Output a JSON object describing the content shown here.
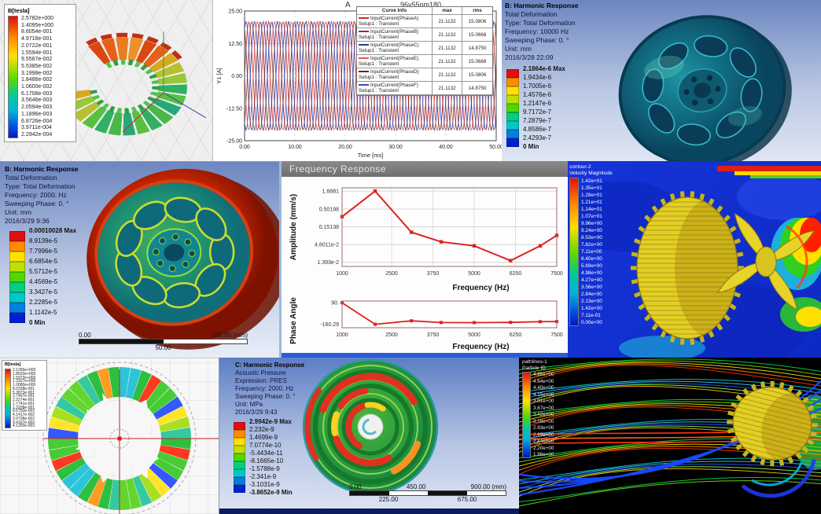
{
  "colors": {
    "ansys9": [
      "#e01010",
      "#ff8c00",
      "#ffe000",
      "#bfe000",
      "#50d800",
      "#00d080",
      "#00c8c8",
      "#0080e0",
      "#0020d0"
    ],
    "accent_red": "#e02020",
    "ansys_bg_top": "#6c86c0"
  },
  "coil": {
    "legend_title": "B[tesla]",
    "legend_values": [
      "2.5782e+000",
      "1.4095e+000",
      "8.6054e-001",
      "4.9716e-001",
      "2.0722e-001",
      "1.5594e-001",
      "9.5567e-002",
      "5.5385e-002",
      "3.1998e-002",
      "1.8486e-002",
      "1.0600e-002",
      "6.1708e-003",
      "3.5646e-003",
      "2.0594e-003",
      "1.1896e-003",
      "6.8726e-004",
      "3.9711e-004",
      "2.2942e-004"
    ]
  },
  "harmonic_10000": {
    "header": [
      "B: Harmonic Response",
      "Total Deformation",
      "Type: Total Deformation",
      "Frequency: 10000 Hz",
      "Sweeping Phase: 0. °",
      "Unit: mm",
      "2016/3/28 22:09"
    ],
    "legend": [
      "2.1864e-6 Max",
      "1.9434e-6",
      "1.7005e-6",
      "1.4576e-6",
      "1.2147e-6",
      "9.7172e-7",
      "7.2879e-7",
      "4.8586e-7",
      "2.4293e-7",
      "0 Min"
    ]
  },
  "harmonic_2000": {
    "header": [
      "B: Harmonic Response",
      "Total Deformation",
      "Type: Total Deformation",
      "Frequency: 2000. Hz",
      "Sweeping Phase: 0. °",
      "Unit: mm",
      "2016/3/29 9:36"
    ],
    "legend": [
      "0.00010028 Max",
      "8.9139e-5",
      "7.7996e-5",
      "6.6854e-5",
      "5.5712e-5",
      "4.4569e-5",
      "3.3427e-5",
      "2.2285e-5",
      "1.1142e-5",
      "0 Min"
    ],
    "ruler": {
      "top_left": "0.00",
      "top_right": "100.00 (mm)",
      "bottom_center": "50.00"
    }
  },
  "freq_response": {
    "window_title": "Frequency Response"
  },
  "cfd": {
    "legend_title_1": "contour-2",
    "legend_title_2": "Velocity Magnitude",
    "legend_values": [
      "1.42e+01",
      "1.35e+01",
      "1.28e+01",
      "1.21e+01",
      "1.14e+01",
      "1.07e+01",
      "9.96e+00",
      "9.24e+00",
      "8.53e+00",
      "7.82e+00",
      "7.11e+00",
      "6.40e+00",
      "5.69e+00",
      "4.98e+00",
      "4.27e+00",
      "3.56e+00",
      "2.84e+00",
      "2.13e+00",
      "1.42e+00",
      "7.11e-01",
      "0.00e+00"
    ]
  },
  "rotor": {
    "legend_title": "B[tesla]",
    "legend_values": [
      "2.1266e+000",
      "1.8620e+000",
      "1.5973e+000",
      "1.3327e+000",
      "1.0680e+000",
      "8.0338e-001",
      "5.3873e-001",
      "2.7407e-001",
      "2.2274e-001",
      "1.7741e-001",
      "1.3208e-001",
      "8.6750e-002",
      "4.1417e-002",
      "2.0708e-002",
      "9.4167e-003",
      "4.1250e-003"
    ]
  },
  "acoustic": {
    "header": [
      "C: Harmonic Response",
      "Acoustic Pressure",
      "Expression: PRES",
      "Frequency: 2000. Hz",
      "Sweeping Phase: 0. °",
      "Unit: MPa",
      "2016/3/29 9:43"
    ],
    "legend": [
      "2.9942e-9 Max",
      "2.232e-9",
      "1.4699e-9",
      "7.0774e-10",
      "-5.4434e-11",
      "-8.1665e-10",
      "-1.5788e-9",
      "-2.341e-9",
      "-3.1031e-9",
      "-3.8652e-9 Min"
    ],
    "ruler": {
      "top_left": "0.00",
      "top_mid": "450.00",
      "top_right": "900.00 (mm)",
      "bottom_left": "225.00",
      "bottom_right": "675.00"
    }
  },
  "pathlines": {
    "legend_title_1": "pathlines-1",
    "legend_title_2": "Particle ID",
    "legend_values": [
      "4.86e+00",
      "4.64e+00",
      "4.40e+00",
      "4.15e+00",
      "3.91e+00",
      "3.67e+00",
      "3.42e+00",
      "3.18e+00",
      "2.93e+00",
      "2.69e+00",
      "2.44e+00",
      "2.20e+00",
      "1.96e+00"
    ]
  },
  "chart_data": [
    {
      "id": "input-currents",
      "type": "line",
      "title": "A",
      "corner_label": "96v55nm180",
      "xlabel": "Time [ms]",
      "ylabel": "Y1 [A]",
      "xlim": [
        0,
        50
      ],
      "ylim": [
        -25,
        25
      ],
      "xticks": [
        "0.00",
        "10.00",
        "20.00",
        "30.00",
        "40.00",
        "50.00"
      ],
      "xtick_values": [
        0,
        10,
        20,
        30,
        40,
        50
      ],
      "yticks": [
        "25.00",
        "12.50",
        "0.00",
        "-12.50",
        "-25.00"
      ],
      "ytick_values": [
        25,
        12.5,
        0,
        -12.5,
        -25
      ],
      "amplitude": 21.1132,
      "period_ms": 3.4,
      "grid": true,
      "legend_columns": [
        "Curve Info",
        "max",
        "rms"
      ],
      "series": [
        {
          "name": "InputCurrent(PhaseA)",
          "setup": "Setup1 : Transient",
          "max": "21.1132",
          "rms": "15.0806",
          "color": "#d02828",
          "phase_deg": 0
        },
        {
          "name": "InputCurrent(PhaseB)",
          "setup": "Setup1 : Transient",
          "max": "21.1132",
          "rms": "15.0668",
          "color": "#8a3232",
          "phase_deg": -60
        },
        {
          "name": "InputCurrent(PhaseC)",
          "setup": "Setup1 : Transient",
          "max": "21.1132",
          "rms": "14.8750",
          "color": "#2838a0",
          "phase_deg": -120
        },
        {
          "name": "InputCurrent(PhaseE)",
          "setup": "Setup1 : Transient",
          "max": "21.1132",
          "rms": "15.0668",
          "color": "#e05858",
          "phase_deg": -180
        },
        {
          "name": "InputCurrent(PhaseD)",
          "setup": "Setup1 : Transient",
          "max": "21.1132",
          "rms": "15.0806",
          "color": "#6a2424",
          "phase_deg": -240
        },
        {
          "name": "InputCurrent(PhaseF)",
          "setup": "Setup1 : Transient",
          "max": "21.1132",
          "rms": "14.8750",
          "color": "#3a4ac0",
          "phase_deg": -300
        }
      ]
    },
    {
      "id": "freq-amplitude",
      "type": "line",
      "yscale": "log",
      "ylabel": "Amplitude (mm/s)",
      "xlabel": "Frequency (Hz)",
      "yticks": [
        "1.6881",
        "0.50198",
        "0.15138",
        "4.6011e-2",
        "1.393e-2"
      ],
      "ytick_values": [
        1.6881,
        0.50198,
        0.15138,
        0.046011,
        0.01393
      ],
      "xticks": [
        "1000",
        "2500",
        "3750",
        "5000",
        "6250",
        "7500"
      ],
      "xtick_values": [
        1000,
        2500,
        3750,
        5000,
        6250,
        7500
      ],
      "xlim": [
        1000,
        7500
      ],
      "x": [
        1000,
        2000,
        3100,
        4000,
        5000,
        6100,
        7000,
        7500
      ],
      "y": [
        0.3,
        1.6881,
        0.105,
        0.055,
        0.042,
        0.0155,
        0.042,
        0.085
      ],
      "color": "#e02020",
      "grid": true,
      "legend": "none"
    },
    {
      "id": "freq-phase",
      "type": "line",
      "ylabel": "Phase Angle",
      "xlabel": "Frequency (Hz)",
      "yticks": [
        "90.",
        "-160.29"
      ],
      "ytick_values": [
        90,
        -160.29
      ],
      "ylim": [
        -200,
        110
      ],
      "xticks": [
        "1000",
        "2500",
        "3750",
        "5000",
        "6250",
        "7500"
      ],
      "xtick_values": [
        1000,
        2500,
        3750,
        5000,
        6250,
        7500
      ],
      "xlim": [
        1000,
        7500
      ],
      "x": [
        1000,
        2000,
        3100,
        4000,
        5000,
        6100,
        7000,
        7500
      ],
      "y": [
        90,
        -160.29,
        -120,
        -140,
        -141,
        -138,
        -130,
        -128
      ],
      "color": "#e02020",
      "grid": false,
      "legend": "none"
    }
  ]
}
